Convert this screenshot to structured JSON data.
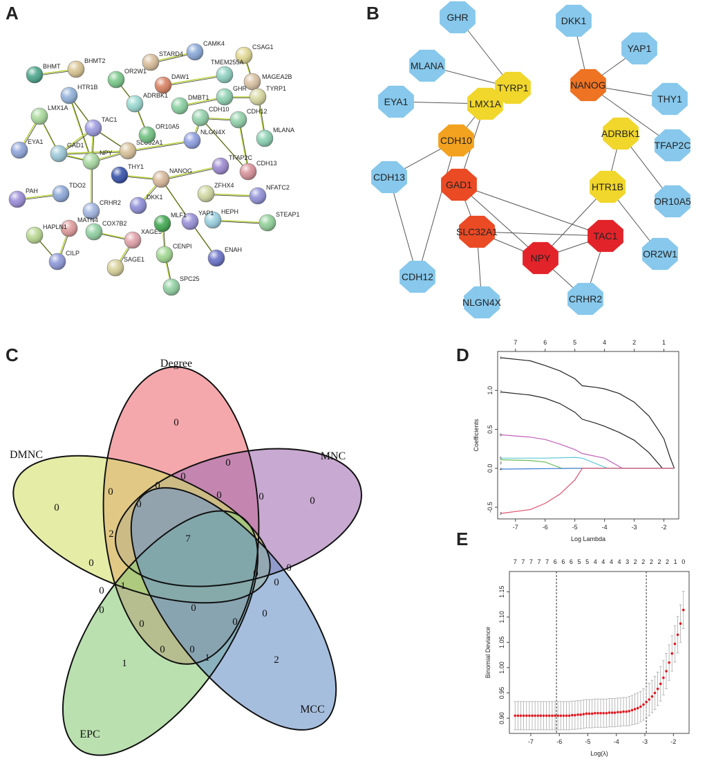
{
  "panel_labels": {
    "a": "A",
    "b": "B",
    "c": "C",
    "d": "D",
    "e": "E"
  },
  "panel_a": {
    "nodes": [
      "BHMT",
      "BHMT2",
      "HTR1B",
      "LMX1A",
      "EYA1",
      "GAD1",
      "TAC1",
      "NPY",
      "SLC32A1",
      "THY1",
      "NANOG",
      "DKK1",
      "TDO2",
      "PAH",
      "CRHR2",
      "MATN4",
      "COX7B2",
      "XAGE5",
      "SAGE1",
      "HAPLN1",
      "CILP",
      "STARD4",
      "CAMK4",
      "CSAG1",
      "OR2W1",
      "DAW1",
      "TMEM255A",
      "MAGEA2B",
      "ADRBK1",
      "DMBT1",
      "GHR",
      "TYRP1",
      "CDH10",
      "CDH12",
      "MLANA",
      "OR10A5",
      "NLGN4X",
      "TFAP2C",
      "CDH13",
      "ZFHX4",
      "NFATC2",
      "HEPH",
      "STEAP1",
      "YAP1",
      "MLF1",
      "CENPI",
      "SPC25",
      "ENAH"
    ],
    "edges": [
      [
        "BHMT",
        "BHMT2"
      ],
      [
        "HTR1B",
        "TAC1"
      ],
      [
        "HTR1B",
        "NPY"
      ],
      [
        "LMX1A",
        "EYA1"
      ],
      [
        "LMX1A",
        "GAD1"
      ],
      [
        "GAD1",
        "TAC1"
      ],
      [
        "GAD1",
        "NPY"
      ],
      [
        "GAD1",
        "SLC32A1"
      ],
      [
        "TAC1",
        "NPY"
      ],
      [
        "TAC1",
        "SLC32A1"
      ],
      [
        "NPY",
        "SLC32A1"
      ],
      [
        "NPY",
        "CRHR2"
      ],
      [
        "SLC32A1",
        "NLGN4X"
      ],
      [
        "THY1",
        "NANOG"
      ],
      [
        "NANOG",
        "DKK1"
      ],
      [
        "NANOG",
        "TFAP2C"
      ],
      [
        "NANOG",
        "YAP1"
      ],
      [
        "PAH",
        "TDO2"
      ],
      [
        "MATN4",
        "CILP"
      ],
      [
        "HAPLN1",
        "CILP"
      ],
      [
        "COX7B2",
        "XAGE5"
      ],
      [
        "XAGE5",
        "SAGE1"
      ],
      [
        "STARD4",
        "CAMK4"
      ],
      [
        "OR2W1",
        "ADRBK1"
      ],
      [
        "ADRBK1",
        "OR10A5"
      ],
      [
        "DAW1",
        "TMEM255A"
      ],
      [
        "CSAG1",
        "MAGEA2B"
      ],
      [
        "DMBT1",
        "GHR"
      ],
      [
        "GHR",
        "TYRP1"
      ],
      [
        "TYRP1",
        "MLANA"
      ],
      [
        "CDH10",
        "CDH12"
      ],
      [
        "CDH10",
        "NLGN4X"
      ],
      [
        "CDH10",
        "CDH13"
      ],
      [
        "CDH12",
        "CDH13"
      ],
      [
        "ZFHX4",
        "NFATC2"
      ],
      [
        "HEPH",
        "STEAP1"
      ],
      [
        "YAP1",
        "ENAH"
      ],
      [
        "MLF1",
        "CENPI"
      ],
      [
        "CENPI",
        "SPC25"
      ]
    ]
  },
  "panel_b": {
    "nodes": [
      {
        "label": "GHR",
        "color": "#87c8ec"
      },
      {
        "label": "DKK1",
        "color": "#87c8ec"
      },
      {
        "label": "MLANA",
        "color": "#87c8ec"
      },
      {
        "label": "YAP1",
        "color": "#87c8ec"
      },
      {
        "label": "TYRP1",
        "color": "#f1d62b"
      },
      {
        "label": "NANOG",
        "color": "#ee7322"
      },
      {
        "label": "THY1",
        "color": "#87c8ec"
      },
      {
        "label": "EYA1",
        "color": "#87c8ec"
      },
      {
        "label": "LMX1A",
        "color": "#f1d62b"
      },
      {
        "label": "ADRBK1",
        "color": "#f1d62b"
      },
      {
        "label": "TFAP2C",
        "color": "#87c8ec"
      },
      {
        "label": "CDH10",
        "color": "#f3a21f"
      },
      {
        "label": "CDH13",
        "color": "#87c8ec"
      },
      {
        "label": "GAD1",
        "color": "#ea4a24"
      },
      {
        "label": "HTR1B",
        "color": "#f1d62b"
      },
      {
        "label": "OR10A5",
        "color": "#87c8ec"
      },
      {
        "label": "SLC32A1",
        "color": "#ea4a24"
      },
      {
        "label": "TAC1",
        "color": "#e3232a"
      },
      {
        "label": "NPY",
        "color": "#e3232a"
      },
      {
        "label": "OR2W1",
        "color": "#87c8ec"
      },
      {
        "label": "CDH12",
        "color": "#87c8ec"
      },
      {
        "label": "NLGN4X",
        "color": "#87c8ec"
      },
      {
        "label": "CRHR2",
        "color": "#87c8ec"
      }
    ],
    "edges": [
      [
        "GHR",
        "TYRP1"
      ],
      [
        "MLANA",
        "TYRP1"
      ],
      [
        "DKK1",
        "NANOG"
      ],
      [
        "YAP1",
        "NANOG"
      ],
      [
        "THY1",
        "NANOG"
      ],
      [
        "NANOG",
        "TFAP2C"
      ],
      [
        "EYA1",
        "LMX1A"
      ],
      [
        "LMX1A",
        "CDH10"
      ],
      [
        "LMX1A",
        "GAD1"
      ],
      [
        "CDH10",
        "CDH13"
      ],
      [
        "CDH10",
        "CDH12"
      ],
      [
        "CDH13",
        "CDH12"
      ],
      [
        "GAD1",
        "SLC32A1"
      ],
      [
        "GAD1",
        "NPY"
      ],
      [
        "GAD1",
        "TAC1"
      ],
      [
        "ADRBK1",
        "HTR1B"
      ],
      [
        "ADRBK1",
        "OR10A5"
      ],
      [
        "HTR1B",
        "OR2W1"
      ],
      [
        "HTR1B",
        "NPY"
      ],
      [
        "SLC32A1",
        "TAC1"
      ],
      [
        "SLC32A1",
        "NLGN4X"
      ],
      [
        "SLC32A1",
        "NPY"
      ],
      [
        "NPY",
        "TAC1"
      ],
      [
        "NPY",
        "CRHR2"
      ],
      [
        "TAC1",
        "CRHR2"
      ]
    ]
  },
  "panel_c": {
    "sets": [
      {
        "name": "Degree",
        "color": "#ee6e74"
      },
      {
        "name": "MNC",
        "color": "#a36fb2"
      },
      {
        "name": "DMNC",
        "color": "#d4e06a"
      },
      {
        "name": "EPC",
        "color": "#8ccc7a"
      },
      {
        "name": "MCC",
        "color": "#6a93c8"
      }
    ],
    "region_counts": [
      "0",
      "0",
      "0",
      "1",
      "2",
      "7",
      "0",
      "0",
      "0",
      "0",
      "0",
      "0",
      "0",
      "2",
      "0",
      "1",
      "0",
      "0",
      "0",
      "0",
      "0",
      "1",
      "0",
      "0",
      "0",
      "0",
      "0",
      "0"
    ]
  },
  "chart_data": [
    {
      "type": "line",
      "title": "",
      "xlabel": "Log Lambda",
      "ylabel": "Coefficients",
      "xlim": [
        -7.6,
        -1.5
      ],
      "ylim": [
        -0.65,
        1.5
      ],
      "xticks": [
        "-7",
        "-6",
        "-5",
        "-4",
        "-3",
        "-2"
      ],
      "xtick_values": [
        -7,
        -6,
        -5,
        -4,
        -3,
        -2
      ],
      "yticks": [
        "-0.5",
        "0.0",
        "0.5",
        "1.0"
      ],
      "ytick_values": [
        -0.5,
        0,
        0.5,
        1.0
      ],
      "top_ticks": [
        "7",
        "6",
        "5",
        "4",
        "2",
        "1"
      ],
      "series": [
        {
          "name": "1",
          "color": "#222222",
          "x": [
            -7.5,
            -6.5,
            -6,
            -5.5,
            -5,
            -4.75,
            -4.3,
            -4,
            -3.5,
            -3,
            -2.5,
            -2.2,
            -2,
            -1.8,
            -1.65
          ],
          "y": [
            1.42,
            1.38,
            1.32,
            1.25,
            1.15,
            1.06,
            1.04,
            1.02,
            0.96,
            0.85,
            0.67,
            0.5,
            0.38,
            0.15,
            0
          ]
        },
        {
          "name": "7",
          "color": "#222222",
          "x": [
            -7.5,
            -6.5,
            -6,
            -5.5,
            -5,
            -4.75,
            -4.3,
            -4,
            -3.5,
            -3,
            -2.5,
            -2.05,
            -1.65
          ],
          "y": [
            0.98,
            0.94,
            0.9,
            0.83,
            0.72,
            0.63,
            0.58,
            0.54,
            0.46,
            0.36,
            0.2,
            0,
            0
          ]
        },
        {
          "name": "6",
          "color": "#c060b8",
          "x": [
            -7.5,
            -6.5,
            -6,
            -5.5,
            -5,
            -4.75,
            -4,
            -3.4,
            -1.65
          ],
          "y": [
            0.43,
            0.4,
            0.37,
            0.31,
            0.24,
            0.19,
            0.13,
            0,
            0
          ]
        },
        {
          "name": "5",
          "color": "#5bc8d8",
          "x": [
            -7.5,
            -6,
            -5,
            -4.75,
            -3.9,
            -1.65
          ],
          "y": [
            0.13,
            0.13,
            0.14,
            0.13,
            0,
            0
          ]
        },
        {
          "name": "3",
          "color": "#66bb55",
          "x": [
            -7.5,
            -6.5,
            -6,
            -5.45,
            -1.65
          ],
          "y": [
            0.11,
            0.1,
            0.08,
            0,
            0
          ]
        },
        {
          "name": "4",
          "color": "#3a7bd5",
          "x": [
            -7.5,
            -4.75,
            -1.65
          ],
          "y": [
            -0.01,
            0,
            0
          ]
        },
        {
          "name": "2",
          "color": "#e0506a",
          "x": [
            -7.5,
            -6.5,
            -6,
            -5.5,
            -5,
            -4.75,
            -1.65
          ],
          "y": [
            -0.58,
            -0.53,
            -0.45,
            -0.33,
            -0.15,
            0,
            0
          ]
        }
      ]
    },
    {
      "type": "scatter",
      "title": "",
      "xlabel": "Log(λ)",
      "ylabel": "Binomial Deviance",
      "xlim": [
        -7.75,
        -1.45
      ],
      "ylim": [
        0.87,
        1.19
      ],
      "xticks": [
        "-7",
        "-6",
        "-5",
        "-4",
        "-3",
        "-2"
      ],
      "xtick_values": [
        -7,
        -6,
        -5,
        -4,
        -3,
        -2
      ],
      "yticks": [
        "0.90",
        "0.95",
        "1.00",
        "1.05",
        "1.10",
        "1.15"
      ],
      "ytick_values": [
        0.9,
        0.95,
        1.0,
        1.05,
        1.1,
        1.15
      ],
      "top_ticks": [
        "7",
        "7",
        "7",
        "7",
        "7",
        "6",
        "6",
        "6",
        "5",
        "5",
        "4",
        "4",
        "4",
        "4",
        "3",
        "2",
        "2",
        "2",
        "2",
        "2",
        "1",
        "0"
      ],
      "vlines": [
        -6.1,
        -2.95
      ],
      "x": [
        -7.55,
        -7.45,
        -7.35,
        -7.25,
        -7.15,
        -7.05,
        -6.95,
        -6.85,
        -6.75,
        -6.65,
        -6.55,
        -6.45,
        -6.35,
        -6.25,
        -6.15,
        -6.05,
        -5.95,
        -5.85,
        -5.75,
        -5.65,
        -5.55,
        -5.45,
        -5.35,
        -5.25,
        -5.15,
        -5.05,
        -4.95,
        -4.85,
        -4.75,
        -4.65,
        -4.55,
        -4.45,
        -4.35,
        -4.25,
        -4.15,
        -4.05,
        -3.95,
        -3.85,
        -3.75,
        -3.65,
        -3.55,
        -3.45,
        -3.35,
        -3.25,
        -3.15,
        -3.05,
        -2.95,
        -2.85,
        -2.75,
        -2.65,
        -2.55,
        -2.45,
        -2.35,
        -2.25,
        -2.15,
        -2.05,
        -1.95,
        -1.85,
        -1.75,
        -1.65
      ],
      "y": [
        0.905,
        0.905,
        0.905,
        0.905,
        0.905,
        0.905,
        0.905,
        0.905,
        0.905,
        0.905,
        0.905,
        0.905,
        0.905,
        0.905,
        0.905,
        0.905,
        0.905,
        0.905,
        0.905,
        0.905,
        0.906,
        0.906,
        0.907,
        0.907,
        0.908,
        0.909,
        0.909,
        0.909,
        0.91,
        0.91,
        0.91,
        0.91,
        0.91,
        0.911,
        0.911,
        0.911,
        0.912,
        0.912,
        0.913,
        0.913,
        0.914,
        0.916,
        0.918,
        0.92,
        0.923,
        0.927,
        0.932,
        0.937,
        0.943,
        0.95,
        0.958,
        0.968,
        0.98,
        0.993,
        1.01,
        1.028,
        1.047,
        1.065,
        1.087,
        1.114
      ],
      "se": [
        0.028,
        0.028,
        0.028,
        0.028,
        0.028,
        0.028,
        0.028,
        0.028,
        0.028,
        0.028,
        0.028,
        0.028,
        0.028,
        0.028,
        0.028,
        0.028,
        0.028,
        0.028,
        0.028,
        0.028,
        0.028,
        0.028,
        0.028,
        0.028,
        0.028,
        0.028,
        0.028,
        0.028,
        0.028,
        0.028,
        0.028,
        0.028,
        0.028,
        0.028,
        0.028,
        0.028,
        0.028,
        0.028,
        0.028,
        0.028,
        0.029,
        0.029,
        0.03,
        0.03,
        0.03,
        0.031,
        0.031,
        0.032,
        0.032,
        0.033,
        0.033,
        0.034,
        0.034,
        0.035,
        0.035,
        0.035,
        0.036,
        0.036,
        0.037,
        0.037
      ],
      "point_color": "#e8141c"
    }
  ]
}
